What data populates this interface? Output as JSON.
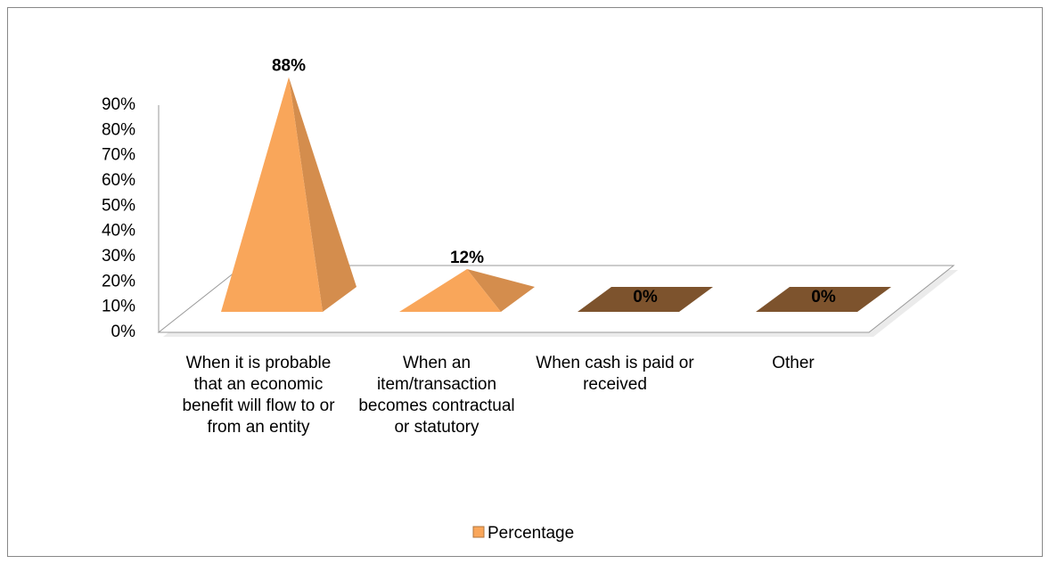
{
  "chart_data": {
    "type": "pyramid3d",
    "categories": [
      "When it is probable that an economic benefit will flow to or from an entity",
      "When an item/transaction becomes contractual or statutory",
      "When cash is paid or received",
      "Other"
    ],
    "series": [
      {
        "name": "Percentage",
        "color": "#f9a65a",
        "values": [
          88,
          12,
          0,
          0
        ],
        "value_labels": [
          "88%",
          "12%",
          "0%",
          "0%"
        ]
      }
    ],
    "ylim": [
      0,
      90
    ],
    "yticks": [
      {
        "value": 0,
        "label": "0%"
      },
      {
        "value": 10,
        "label": "10%"
      },
      {
        "value": 20,
        "label": "20%"
      },
      {
        "value": 30,
        "label": "30%"
      },
      {
        "value": 40,
        "label": "40%"
      },
      {
        "value": 50,
        "label": "50%"
      },
      {
        "value": 60,
        "label": "60%"
      },
      {
        "value": 70,
        "label": "70%"
      },
      {
        "value": 80,
        "label": "80%"
      },
      {
        "value": 90,
        "label": "90%"
      }
    ],
    "legend": "bottom"
  }
}
